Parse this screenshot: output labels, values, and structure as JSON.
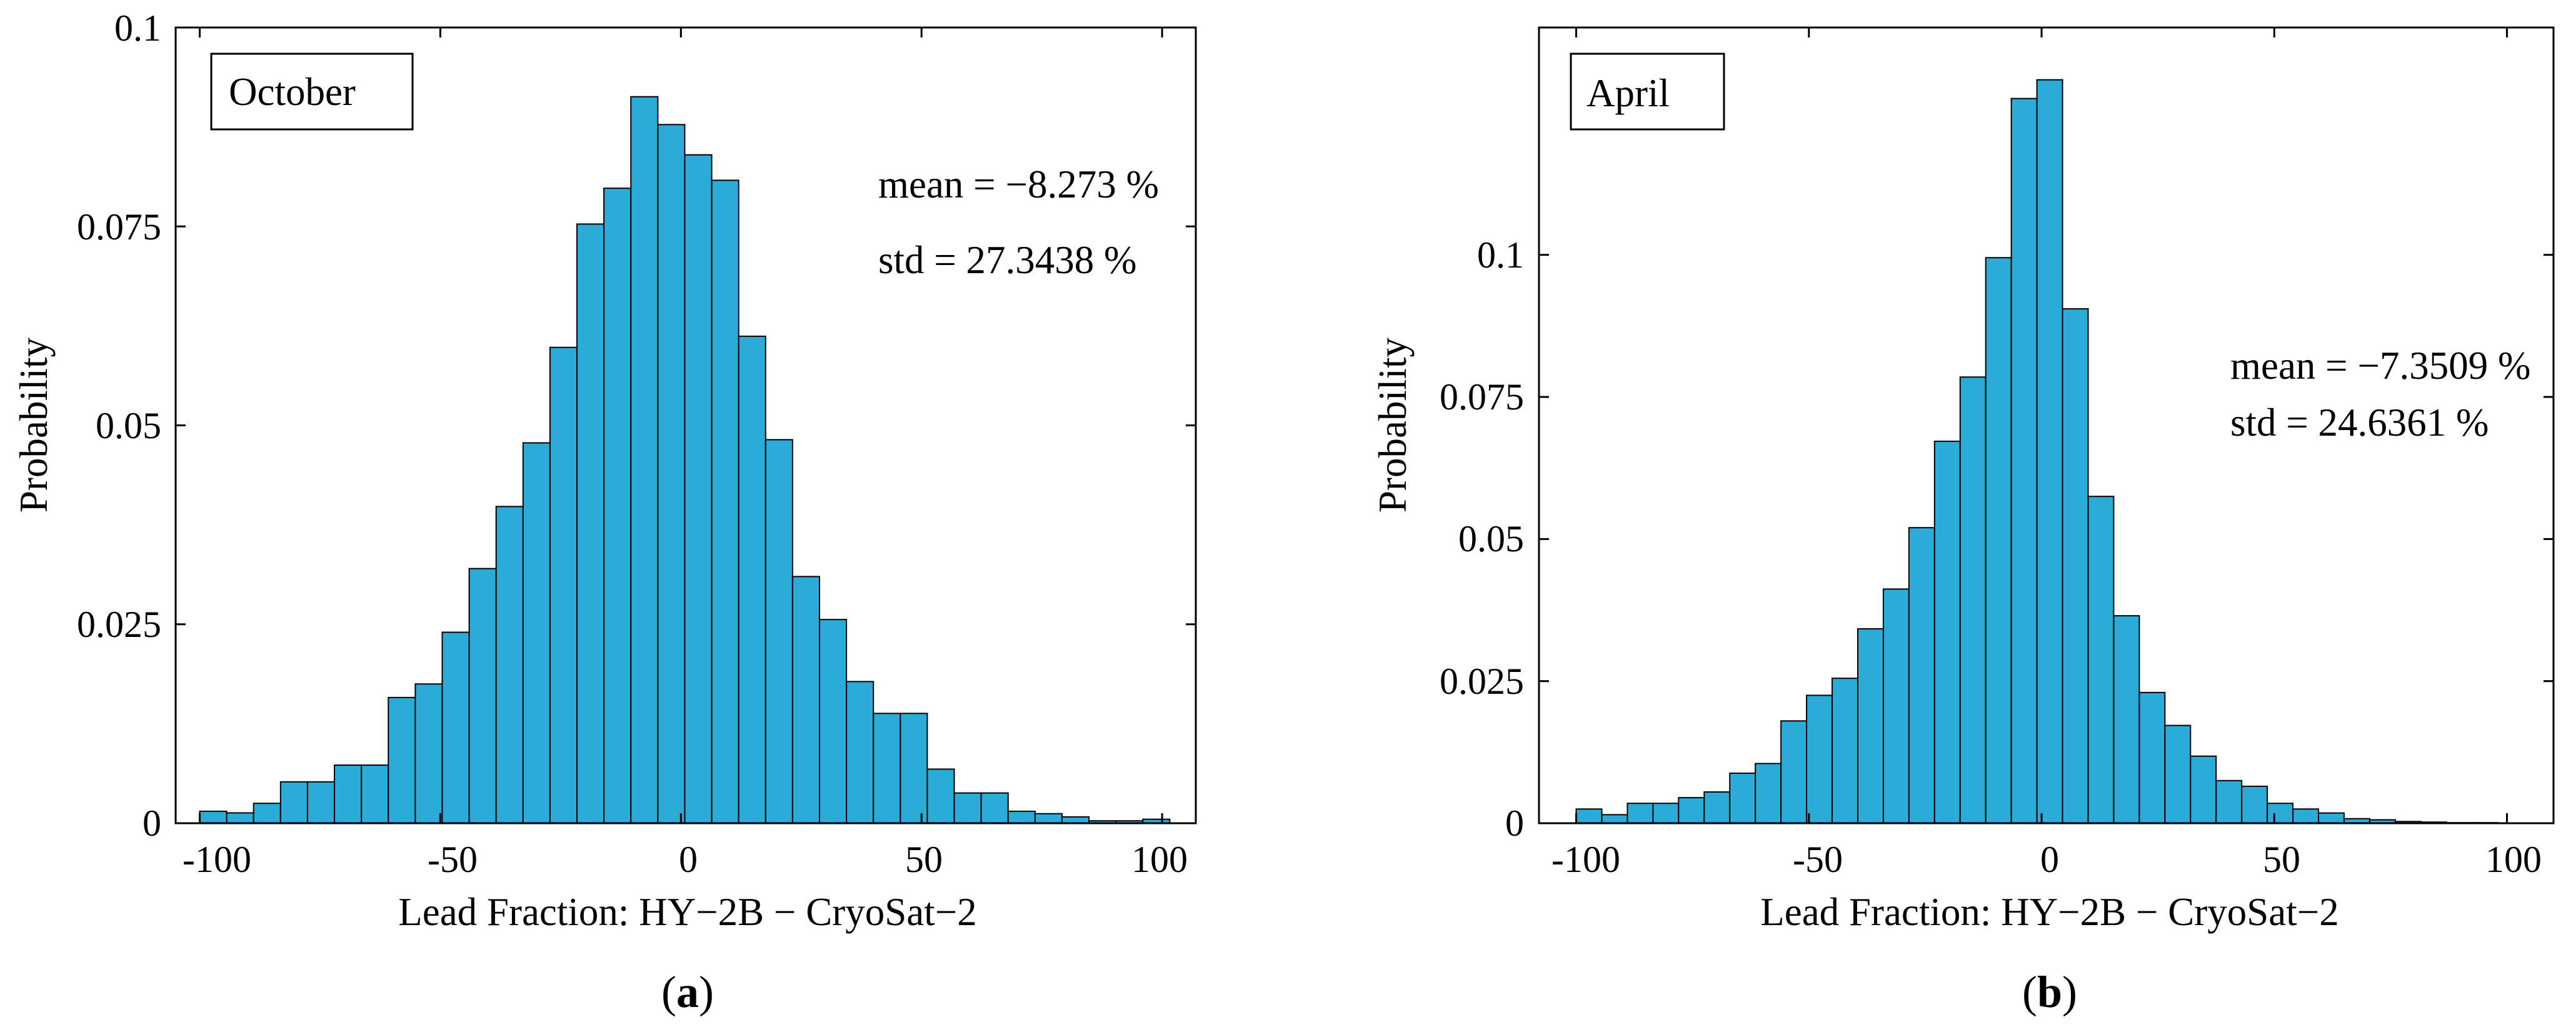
{
  "chart_data": [
    {
      "type": "bar",
      "panel_label": "(a)",
      "panel_label_letter": "a",
      "legend_text": "October",
      "title": "",
      "xlabel": "Lead Fraction: HY−2B − CryoSat−2",
      "ylabel": "Probability",
      "xlim": [
        -105,
        107
      ],
      "ylim": [
        0,
        0.1
      ],
      "xticks": [
        -100,
        -50,
        0,
        50,
        100
      ],
      "xtick_labels": [
        "-100",
        "-50",
        "0",
        "50",
        "100"
      ],
      "yticks": [
        0,
        0.025,
        0.05,
        0.075,
        0.1
      ],
      "ytick_labels": [
        "0",
        "0.025",
        "0.05",
        "0.075",
        "0.1"
      ],
      "bin_width": 5.6,
      "bin_start": -100,
      "values": [
        0.0015,
        0.0013,
        0.0025,
        0.0052,
        0.0052,
        0.0073,
        0.0073,
        0.0158,
        0.0175,
        0.024,
        0.032,
        0.0398,
        0.0478,
        0.0598,
        0.0753,
        0.0798,
        0.0913,
        0.0878,
        0.084,
        0.0808,
        0.0612,
        0.0482,
        0.031,
        0.0256,
        0.0178,
        0.0138,
        0.0138,
        0.0068,
        0.0038,
        0.0038,
        0.0015,
        0.0012,
        0.0008,
        0.0003,
        0.0003,
        0.0005
      ],
      "annotations": [
        "mean = −8.273 %",
        "std = 27.3438 %"
      ],
      "bar_color": "#2AABD8"
    },
    {
      "type": "bar",
      "panel_label": "(b)",
      "panel_label_letter": "b",
      "legend_text": "April",
      "title": "",
      "xlabel": "Lead Fraction: HY−2B − CryoSat−2",
      "ylabel": "Probability",
      "xlim": [
        -108,
        110
      ],
      "ylim": [
        0,
        0.14
      ],
      "xticks": [
        -100,
        -50,
        0,
        50,
        100
      ],
      "xtick_labels": [
        "-100",
        "-50",
        "0",
        "50",
        "100"
      ],
      "yticks": [
        0,
        0.025,
        0.05,
        0.075,
        0.1
      ],
      "ytick_labels": [
        "0",
        "0.025",
        "0.05",
        "0.075",
        "0.1"
      ],
      "bin_width": 5.5,
      "bin_start": -100,
      "values": [
        0.0025,
        0.0015,
        0.0035,
        0.0035,
        0.0045,
        0.0055,
        0.0088,
        0.0105,
        0.018,
        0.0225,
        0.0255,
        0.0342,
        0.0412,
        0.052,
        0.0672,
        0.0785,
        0.0995,
        0.1275,
        0.1308,
        0.0905,
        0.0575,
        0.0365,
        0.023,
        0.0172,
        0.0118,
        0.0075,
        0.0065,
        0.0035,
        0.0025,
        0.0018,
        0.0008,
        0.0006,
        0.0003,
        0.0002,
        0.0001,
        0.0001
      ],
      "annotations": [
        "mean = −7.3509 %",
        "std = 24.6361 %"
      ],
      "bar_color": "#2AABD8"
    }
  ]
}
